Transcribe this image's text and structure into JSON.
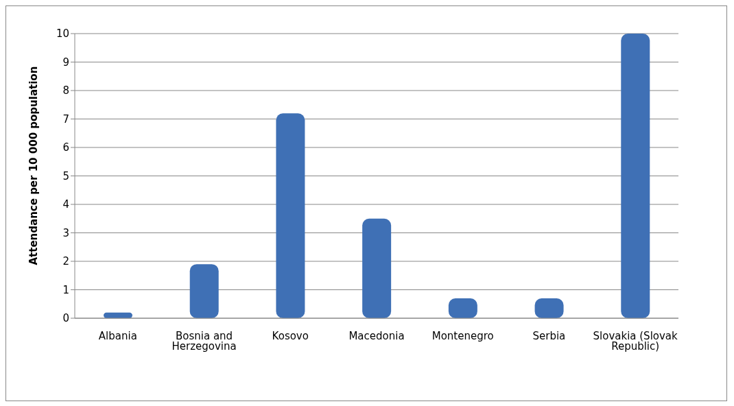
{
  "chart_data": {
    "type": "bar",
    "ylabel": "Attendance per 10 000 population",
    "categories": [
      "Albania",
      "Bosnia and Herzegovina",
      "Kosovo",
      "Macedonia",
      "Montenegro",
      "Serbia",
      "Slovakia (Slovak Republic)"
    ],
    "values": [
      0.2,
      1.9,
      7.2,
      3.5,
      0.7,
      0.7,
      10
    ],
    "color": "#3f70b5",
    "ylim": [
      0,
      10
    ],
    "yticks": [
      0,
      1,
      2,
      3,
      4,
      5,
      6,
      7,
      8,
      9,
      10
    ],
    "grid": "y"
  }
}
